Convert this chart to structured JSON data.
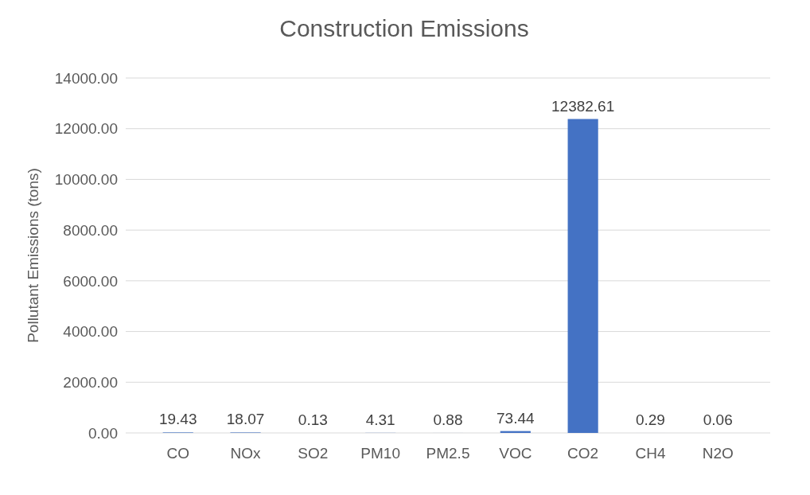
{
  "chart_data": {
    "type": "bar",
    "title": "Construction Emissions",
    "ylabel": "Pollutant Emissions (tons)",
    "categories": [
      "CO",
      "NOx",
      "SO2",
      "PM10",
      "PM2.5",
      "VOC",
      "CO2",
      "CH4",
      "N2O"
    ],
    "values": [
      19.43,
      18.07,
      0.13,
      4.31,
      0.88,
      73.44,
      12382.61,
      0.29,
      0.06
    ],
    "color": "#4472c4",
    "ylim": [
      0,
      14000
    ],
    "yticks": [
      {
        "value": 0,
        "label": "0.00"
      },
      {
        "value": 2000,
        "label": "2000.00"
      },
      {
        "value": 4000,
        "label": "4000.00"
      },
      {
        "value": 6000,
        "label": "6000.00"
      },
      {
        "value": 8000,
        "label": "8000.00"
      },
      {
        "value": 10000,
        "label": "10000.00"
      },
      {
        "value": 12000,
        "label": "12000.00"
      },
      {
        "value": 14000,
        "label": "14000.00"
      }
    ],
    "grid": true,
    "data_labels": true
  }
}
